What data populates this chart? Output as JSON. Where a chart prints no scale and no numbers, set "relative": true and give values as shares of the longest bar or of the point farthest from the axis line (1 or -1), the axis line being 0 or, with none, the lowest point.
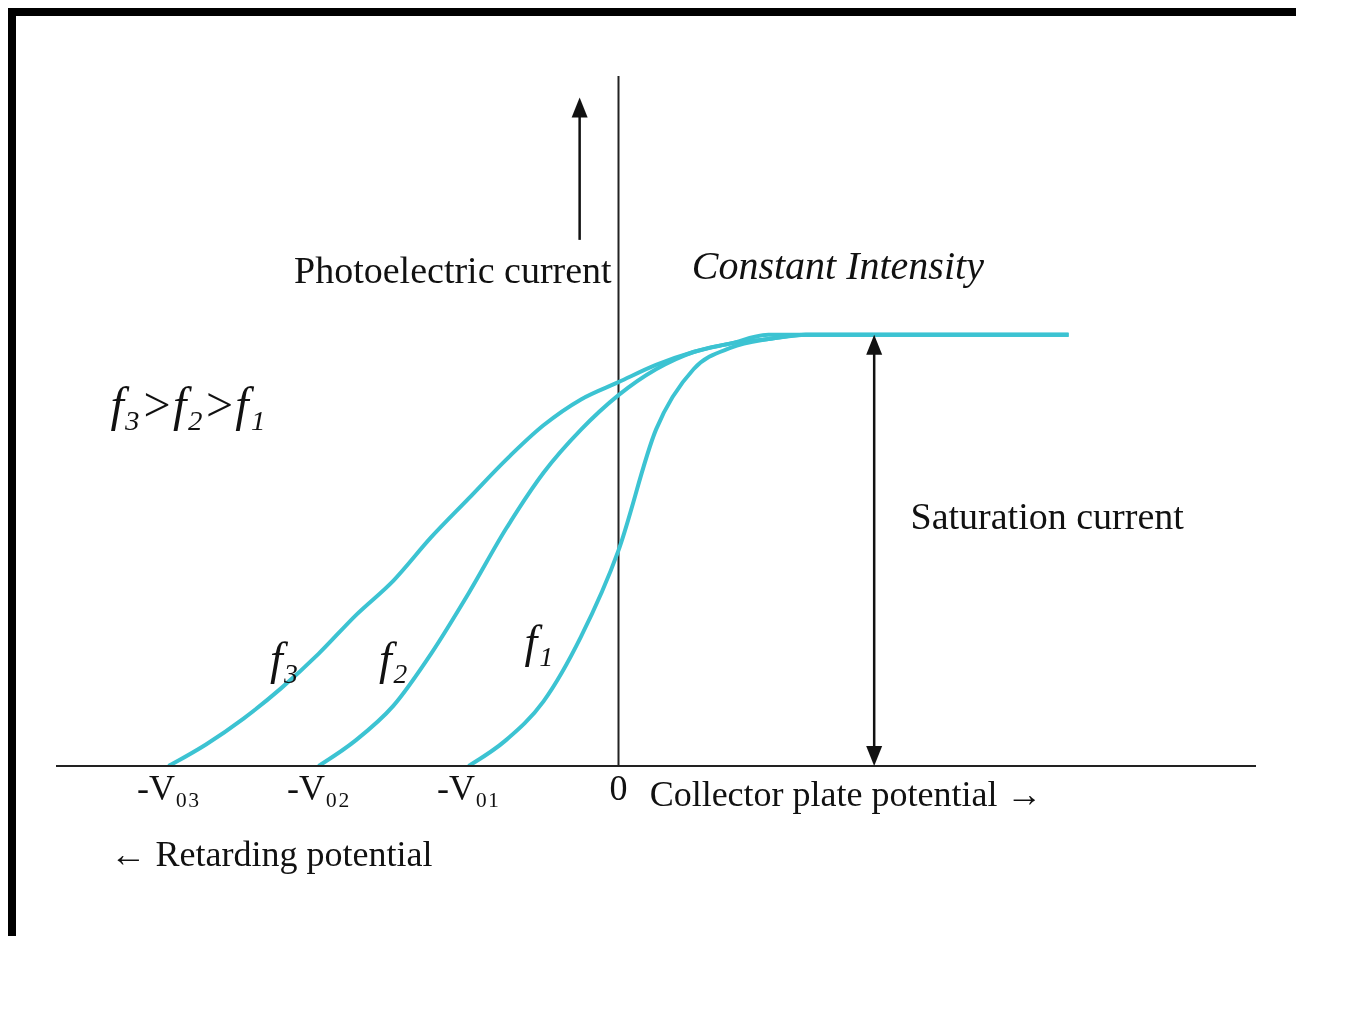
{
  "chart_data": {
    "type": "line",
    "relative": true,
    "xlabel": "Collector plate potential →",
    "ylabel": "Photoelectric current",
    "categories": [
      null,
      null,
      null,
      "-V₀₃",
      null,
      null,
      null,
      "-V₀₂",
      null,
      null,
      null,
      "-V₀₁",
      null,
      null,
      null,
      "0",
      null,
      null,
      null,
      null,
      null,
      null,
      null,
      null,
      null,
      null,
      null,
      null,
      null,
      null,
      null,
      null,
      null
    ],
    "series": [
      {
        "name": "f₃",
        "color": "#3cc3d2",
        "values": [
          null,
          null,
          null,
          0,
          0.05,
          0.11,
          0.18,
          0.26,
          0.35,
          0.43,
          0.53,
          0.62,
          0.71,
          0.79,
          0.85,
          0.89,
          0.93,
          0.96,
          0.98,
          0.99,
          1,
          1,
          1,
          1,
          1,
          1,
          1,
          1,
          null,
          null,
          null,
          null,
          null
        ]
      },
      {
        "name": "f₂",
        "color": "#3cc3d2",
        "values": [
          null,
          null,
          null,
          null,
          null,
          null,
          null,
          0,
          0.06,
          0.14,
          0.26,
          0.4,
          0.55,
          0.68,
          0.78,
          0.86,
          0.92,
          0.96,
          0.98,
          1,
          1,
          1,
          1,
          1,
          1,
          1,
          1,
          1,
          null,
          null,
          null,
          null,
          null
        ]
      },
      {
        "name": "f₁",
        "color": "#3cc3d2",
        "values": [
          null,
          null,
          null,
          null,
          null,
          null,
          null,
          null,
          null,
          null,
          null,
          0,
          0.06,
          0.15,
          0.3,
          0.5,
          0.78,
          0.92,
          0.97,
          0.99,
          1,
          1,
          1,
          1,
          1,
          1,
          1,
          1,
          null,
          null,
          null,
          null,
          null
        ]
      }
    ],
    "ref_lines": [
      {
        "axis": "x",
        "value": "0",
        "color": "#222222"
      }
    ],
    "annotations": [
      "Constant Intensity",
      "Saturation current",
      "f₃>f₂>f₁",
      "← Retarding potential"
    ]
  }
}
